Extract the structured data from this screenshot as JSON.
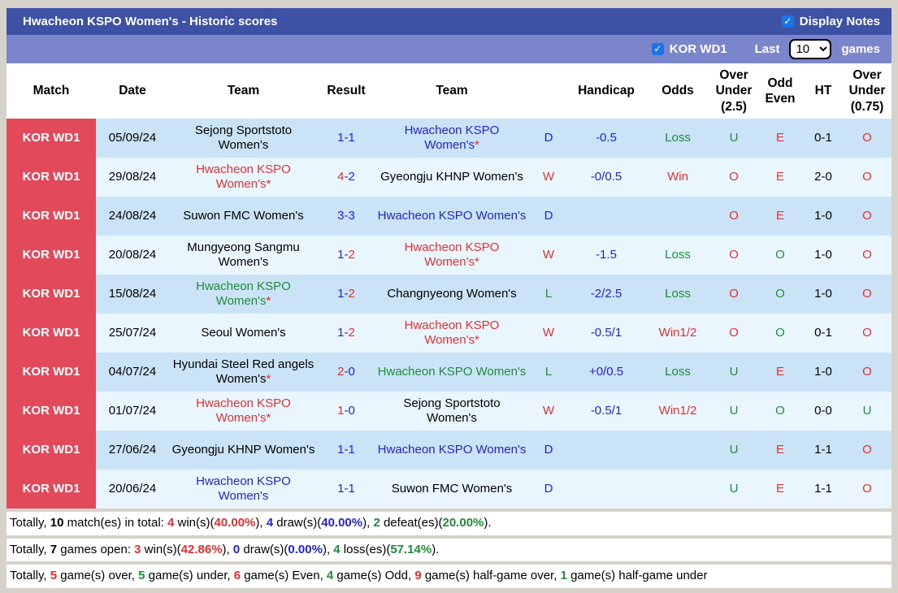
{
  "header": {
    "title": "Hwacheon KSPO Women's - Historic scores",
    "display_notes_label": "Display Notes"
  },
  "controls": {
    "league_label": "KOR WD1",
    "last_label": "Last",
    "last_games_value": "10",
    "games_label": "games"
  },
  "icons": {
    "checkbox_check": "✓"
  },
  "colors": {
    "header_bar": "#3d51a5",
    "subheader_bar": "#7a85cc",
    "league_column_red": "#e2495a",
    "row_light_blue": "#cbe3f6",
    "row_pale_blue": "#eaf6fd",
    "win_red": "#e03131",
    "draw_blue": "#2424cd",
    "loss_green": "#1e8c38"
  },
  "table": {
    "score_separator": "-",
    "columns": [
      "Match",
      "Date",
      "Team",
      "Result",
      "Team",
      "",
      "Handicap",
      "Odds",
      "Over Under (2.5)",
      "Odd Even",
      "HT",
      "Over Under (0.75)"
    ],
    "rows": [
      {
        "match": "KOR WD1",
        "date": "05/09/24",
        "team1": {
          "name": "Sejong Sportstoto Women's",
          "color": "black",
          "star": ""
        },
        "score1": {
          "t": "1",
          "c": "navy"
        },
        "score2": {
          "t": "1",
          "c": "navy"
        },
        "team2": {
          "name": "Hwacheon KSPO Women's",
          "color": "navy",
          "star": "*"
        },
        "wdl": {
          "t": "D",
          "c": "navy"
        },
        "handicap": "-0.5",
        "odds": {
          "t": "Loss",
          "c": "green"
        },
        "ou25": {
          "t": "U",
          "c": "green"
        },
        "oddeven": {
          "t": "E",
          "c": "red"
        },
        "ht": "0-1",
        "ou075": {
          "t": "O",
          "c": "red"
        }
      },
      {
        "match": "KOR WD1",
        "date": "29/08/24",
        "team1": {
          "name": "Hwacheon KSPO Women's",
          "color": "red",
          "star": "*"
        },
        "score1": {
          "t": "4",
          "c": "red"
        },
        "score2": {
          "t": "2",
          "c": "navy"
        },
        "team2": {
          "name": "Gyeongju KHNP Women's",
          "color": "black",
          "star": ""
        },
        "wdl": {
          "t": "W",
          "c": "red"
        },
        "handicap": "-0/0.5",
        "odds": {
          "t": "Win",
          "c": "red"
        },
        "ou25": {
          "t": "O",
          "c": "red"
        },
        "oddeven": {
          "t": "E",
          "c": "red"
        },
        "ht": "2-0",
        "ou075": {
          "t": "O",
          "c": "red"
        }
      },
      {
        "match": "KOR WD1",
        "date": "24/08/24",
        "team1": {
          "name": "Suwon FMC Women's",
          "color": "black",
          "star": ""
        },
        "score1": {
          "t": "3",
          "c": "navy"
        },
        "score2": {
          "t": "3",
          "c": "navy"
        },
        "team2": {
          "name": "Hwacheon KSPO Women's",
          "color": "navy",
          "star": ""
        },
        "wdl": {
          "t": "D",
          "c": "navy"
        },
        "handicap": "",
        "odds": {
          "t": "",
          "c": "black"
        },
        "ou25": {
          "t": "O",
          "c": "red"
        },
        "oddeven": {
          "t": "E",
          "c": "red"
        },
        "ht": "1-0",
        "ou075": {
          "t": "O",
          "c": "red"
        }
      },
      {
        "match": "KOR WD1",
        "date": "20/08/24",
        "team1": {
          "name": "Mungyeong Sangmu Women's",
          "color": "black",
          "star": ""
        },
        "score1": {
          "t": "1",
          "c": "navy"
        },
        "score2": {
          "t": "2",
          "c": "red"
        },
        "team2": {
          "name": "Hwacheon KSPO Women's",
          "color": "red",
          "star": "*"
        },
        "wdl": {
          "t": "W",
          "c": "red"
        },
        "handicap": "-1.5",
        "odds": {
          "t": "Loss",
          "c": "green"
        },
        "ou25": {
          "t": "O",
          "c": "red"
        },
        "oddeven": {
          "t": "O",
          "c": "green"
        },
        "ht": "1-0",
        "ou075": {
          "t": "O",
          "c": "red"
        }
      },
      {
        "match": "KOR WD1",
        "date": "15/08/24",
        "team1": {
          "name": "Hwacheon KSPO Women's",
          "color": "green",
          "star": "*"
        },
        "score1": {
          "t": "1",
          "c": "navy"
        },
        "score2": {
          "t": "2",
          "c": "red"
        },
        "team2": {
          "name": "Changnyeong Women's",
          "color": "black",
          "star": ""
        },
        "wdl": {
          "t": "L",
          "c": "green"
        },
        "handicap": "-2/2.5",
        "odds": {
          "t": "Loss",
          "c": "green"
        },
        "ou25": {
          "t": "O",
          "c": "red"
        },
        "oddeven": {
          "t": "O",
          "c": "green"
        },
        "ht": "1-0",
        "ou075": {
          "t": "O",
          "c": "red"
        }
      },
      {
        "match": "KOR WD1",
        "date": "25/07/24",
        "team1": {
          "name": "Seoul Women's",
          "color": "black",
          "star": ""
        },
        "score1": {
          "t": "1",
          "c": "navy"
        },
        "score2": {
          "t": "2",
          "c": "red"
        },
        "team2": {
          "name": "Hwacheon KSPO Women's",
          "color": "red",
          "star": "*"
        },
        "wdl": {
          "t": "W",
          "c": "red"
        },
        "handicap": "-0.5/1",
        "odds": {
          "t": "Win1/2",
          "c": "red"
        },
        "ou25": {
          "t": "O",
          "c": "red"
        },
        "oddeven": {
          "t": "O",
          "c": "green"
        },
        "ht": "0-1",
        "ou075": {
          "t": "O",
          "c": "red"
        }
      },
      {
        "match": "KOR WD1",
        "date": "04/07/24",
        "team1": {
          "name": "Hyundai Steel Red angels Women's",
          "color": "black",
          "star": "*"
        },
        "score1": {
          "t": "2",
          "c": "red"
        },
        "score2": {
          "t": "0",
          "c": "navy"
        },
        "team2": {
          "name": "Hwacheon KSPO Women's",
          "color": "green",
          "star": ""
        },
        "wdl": {
          "t": "L",
          "c": "green"
        },
        "handicap": "+0/0.5",
        "odds": {
          "t": "Loss",
          "c": "green"
        },
        "ou25": {
          "t": "U",
          "c": "green"
        },
        "oddeven": {
          "t": "E",
          "c": "red"
        },
        "ht": "1-0",
        "ou075": {
          "t": "O",
          "c": "red"
        }
      },
      {
        "match": "KOR WD1",
        "date": "01/07/24",
        "team1": {
          "name": "Hwacheon KSPO Women's",
          "color": "red",
          "star": "*"
        },
        "score1": {
          "t": "1",
          "c": "red"
        },
        "score2": {
          "t": "0",
          "c": "navy"
        },
        "team2": {
          "name": "Sejong Sportstoto Women's",
          "color": "black",
          "star": ""
        },
        "wdl": {
          "t": "W",
          "c": "red"
        },
        "handicap": "-0.5/1",
        "odds": {
          "t": "Win1/2",
          "c": "red"
        },
        "ou25": {
          "t": "U",
          "c": "green"
        },
        "oddeven": {
          "t": "O",
          "c": "green"
        },
        "ht": "0-0",
        "ou075": {
          "t": "U",
          "c": "green"
        }
      },
      {
        "match": "KOR WD1",
        "date": "27/06/24",
        "team1": {
          "name": "Gyeongju KHNP Women's",
          "color": "black",
          "star": ""
        },
        "score1": {
          "t": "1",
          "c": "navy"
        },
        "score2": {
          "t": "1",
          "c": "navy"
        },
        "team2": {
          "name": "Hwacheon KSPO Women's",
          "color": "navy",
          "star": ""
        },
        "wdl": {
          "t": "D",
          "c": "navy"
        },
        "handicap": "",
        "odds": {
          "t": "",
          "c": "black"
        },
        "ou25": {
          "t": "U",
          "c": "green"
        },
        "oddeven": {
          "t": "E",
          "c": "red"
        },
        "ht": "1-1",
        "ou075": {
          "t": "O",
          "c": "red"
        }
      },
      {
        "match": "KOR WD1",
        "date": "20/06/24",
        "team1": {
          "name": "Hwacheon KSPO Women's",
          "color": "navy",
          "star": ""
        },
        "score1": {
          "t": "1",
          "c": "navy"
        },
        "score2": {
          "t": "1",
          "c": "navy"
        },
        "team2": {
          "name": "Suwon FMC Women's",
          "color": "black",
          "star": ""
        },
        "wdl": {
          "t": "D",
          "c": "navy"
        },
        "handicap": "",
        "odds": {
          "t": "",
          "c": "black"
        },
        "ou25": {
          "t": "U",
          "c": "green"
        },
        "oddeven": {
          "t": "E",
          "c": "red"
        },
        "ht": "1-1",
        "ou075": {
          "t": "O",
          "c": "red"
        }
      }
    ]
  },
  "summary": {
    "lines": [
      {
        "segments": [
          {
            "t": "Totally, ",
            "c": "black",
            "b": false
          },
          {
            "t": "10",
            "c": "black",
            "b": true
          },
          {
            "t": " match(es) in total: ",
            "c": "black",
            "b": false
          },
          {
            "t": "4",
            "c": "red",
            "b": true
          },
          {
            "t": " win(s)(",
            "c": "black",
            "b": false
          },
          {
            "t": "40.00%",
            "c": "red",
            "b": true
          },
          {
            "t": "), ",
            "c": "black",
            "b": false
          },
          {
            "t": "4",
            "c": "navy",
            "b": true
          },
          {
            "t": " draw(s)(",
            "c": "black",
            "b": false
          },
          {
            "t": "40.00%",
            "c": "navy",
            "b": true
          },
          {
            "t": "), ",
            "c": "black",
            "b": false
          },
          {
            "t": "2",
            "c": "green",
            "b": true
          },
          {
            "t": " defeat(es)(",
            "c": "black",
            "b": false
          },
          {
            "t": "20.00%",
            "c": "green",
            "b": true
          },
          {
            "t": ").",
            "c": "black",
            "b": false
          }
        ]
      },
      {
        "segments": [
          {
            "t": "Totally, ",
            "c": "black",
            "b": false
          },
          {
            "t": "7",
            "c": "black",
            "b": true
          },
          {
            "t": " games open: ",
            "c": "black",
            "b": false
          },
          {
            "t": "3",
            "c": "red",
            "b": true
          },
          {
            "t": " win(s)(",
            "c": "black",
            "b": false
          },
          {
            "t": "42.86%",
            "c": "red",
            "b": true
          },
          {
            "t": "), ",
            "c": "black",
            "b": false
          },
          {
            "t": "0",
            "c": "navy",
            "b": true
          },
          {
            "t": " draw(s)(",
            "c": "black",
            "b": false
          },
          {
            "t": "0.00%",
            "c": "navy",
            "b": true
          },
          {
            "t": "), ",
            "c": "black",
            "b": false
          },
          {
            "t": "4",
            "c": "green",
            "b": true
          },
          {
            "t": " loss(es)(",
            "c": "black",
            "b": false
          },
          {
            "t": "57.14%",
            "c": "green",
            "b": true
          },
          {
            "t": ").",
            "c": "black",
            "b": false
          }
        ]
      },
      {
        "segments": [
          {
            "t": "Totally, ",
            "c": "black",
            "b": false
          },
          {
            "t": "5",
            "c": "red",
            "b": true
          },
          {
            "t": " game(s) over, ",
            "c": "black",
            "b": false
          },
          {
            "t": "5",
            "c": "green",
            "b": true
          },
          {
            "t": " game(s) under, ",
            "c": "black",
            "b": false
          },
          {
            "t": "6",
            "c": "red",
            "b": true
          },
          {
            "t": " game(s) Even, ",
            "c": "black",
            "b": false
          },
          {
            "t": "4",
            "c": "green",
            "b": true
          },
          {
            "t": " game(s) Odd, ",
            "c": "black",
            "b": false
          },
          {
            "t": "9",
            "c": "red",
            "b": true
          },
          {
            "t": " game(s) half-game over, ",
            "c": "black",
            "b": false
          },
          {
            "t": "1",
            "c": "green",
            "b": true
          },
          {
            "t": " game(s) half-game under",
            "c": "black",
            "b": false
          }
        ]
      }
    ]
  }
}
